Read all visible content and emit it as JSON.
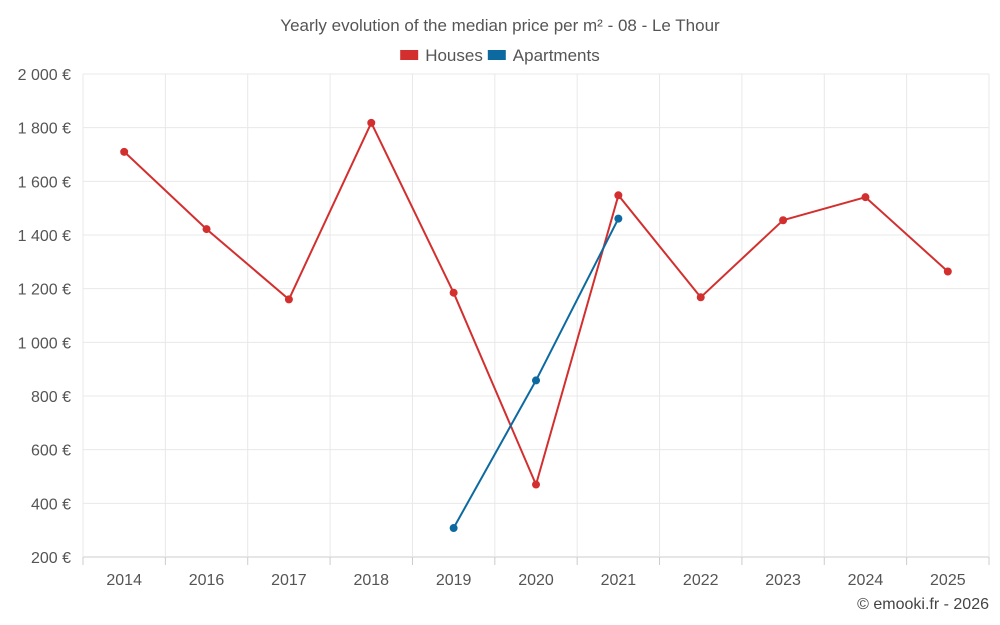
{
  "chart_data": {
    "type": "line",
    "title": "Yearly evolution of the median price per m² - 08 - Le Thour",
    "categories": [
      "2014",
      "2016",
      "2017",
      "2018",
      "2019",
      "2020",
      "2021",
      "2022",
      "2023",
      "2024",
      "2025"
    ],
    "series": [
      {
        "name": "Houses",
        "color": "#d32f2f",
        "values": [
          1710,
          1422,
          1160,
          1818,
          1185,
          470,
          1548,
          1168,
          1455,
          1541,
          1264
        ]
      },
      {
        "name": "Apartments",
        "color": "#0d6aa0",
        "values": [
          null,
          null,
          null,
          null,
          308,
          858,
          1461,
          null,
          null,
          null,
          null
        ]
      }
    ],
    "ylim": [
      200,
      2000
    ],
    "yticks": [
      200,
      400,
      600,
      800,
      1000,
      1200,
      1400,
      1600,
      1800,
      2000
    ],
    "ytick_labels": [
      "200 €",
      "400 €",
      "600 €",
      "800 €",
      "1 000 €",
      "1 200 €",
      "1 400 €",
      "1 600 €",
      "1 800 €",
      "2 000 €"
    ],
    "xlabel": "",
    "ylabel": "",
    "grid": true,
    "legend_position": "top-center"
  },
  "credit": "© emooki.fr - 2026"
}
